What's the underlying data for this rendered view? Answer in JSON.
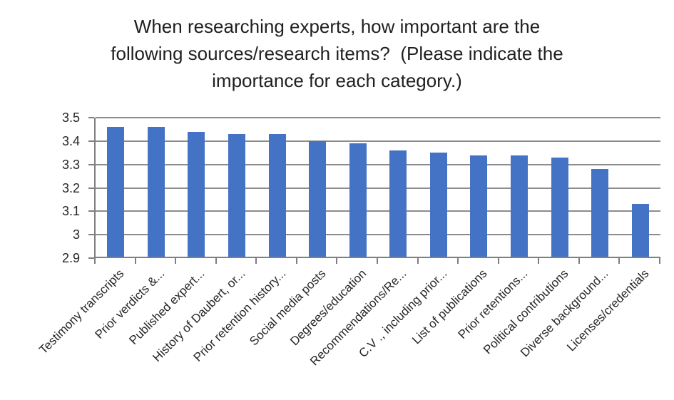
{
  "title": {
    "full_text": "When researching experts, how important are the following sources/research items?  (Please indicate the importance for each category.)",
    "lines": [
      "When researching experts, how important are the",
      "following sources/research items?  (Please indicate the",
      "importance for each category.)"
    ]
  },
  "chart_data": {
    "type": "bar",
    "title": "When researching experts, how important are the following sources/research items?  (Please indicate the importance for each category.)",
    "categories": [
      "Testimony transcripts",
      "Prior verdicts &...",
      "Published expert...",
      "History of Daubert, or...",
      "Prior retention history...",
      "Social media posts",
      "Degrees/education",
      "Recommendations/Re...",
      "C.V ., including prior...",
      "List of publications",
      "Prior retentions...",
      "Political contributions",
      "Diverse background...",
      "Licenses/credentials"
    ],
    "values": [
      3.46,
      3.46,
      3.44,
      3.43,
      3.43,
      3.4,
      3.39,
      3.36,
      3.35,
      3.34,
      3.34,
      3.33,
      3.28,
      3.13
    ],
    "xlabel": "",
    "ylabel": "",
    "ylim": [
      2.9,
      3.5
    ],
    "ytick_step": 0.1,
    "ytick_labels": [
      "2.9",
      "3",
      "3.1",
      "3.2",
      "3.3",
      "3.4",
      "3.5"
    ],
    "grid": "horizontal-major",
    "legend": "none",
    "bar_color": "#4472C4",
    "gridline_color": "#8C8C8C",
    "axis_color": "#7F7F7F",
    "text_color": "#262626"
  }
}
